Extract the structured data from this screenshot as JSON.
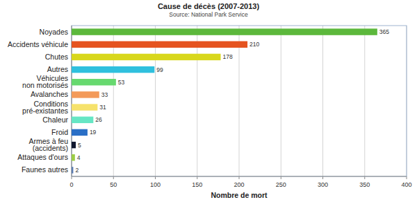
{
  "chart_data": {
    "type": "bar",
    "orientation": "horizontal",
    "title": "Cause de décès (2007-2013)",
    "subtitle": "Source: National Park Service",
    "xlabel": "Nombre de mort",
    "categories": [
      "Noyades",
      "Accidents véhicule",
      "Chutes",
      "Autres",
      "Véhicules\nnon motorisés",
      "Avalanches",
      "Conditions\npré-existantes",
      "Chaleur",
      "Froid",
      "Armes à feu\n(accidents)",
      "Attaques d'ours",
      "Faunes autres"
    ],
    "values": [
      365,
      210,
      178,
      99,
      53,
      33,
      31,
      26,
      19,
      5,
      4,
      2
    ],
    "colors": [
      "#5cb83c",
      "#e5531f",
      "#d8d71c",
      "#2fc0de",
      "#67d96f",
      "#f39a5a",
      "#f6e26c",
      "#66e6c4",
      "#2a6fc6",
      "#10172e",
      "#9ccd45",
      "#5a7bb0"
    ],
    "xlim": [
      0,
      400
    ],
    "xticks": [
      0,
      50,
      100,
      150,
      200,
      250,
      300,
      350,
      400
    ],
    "grid": true,
    "data_labels": true
  }
}
